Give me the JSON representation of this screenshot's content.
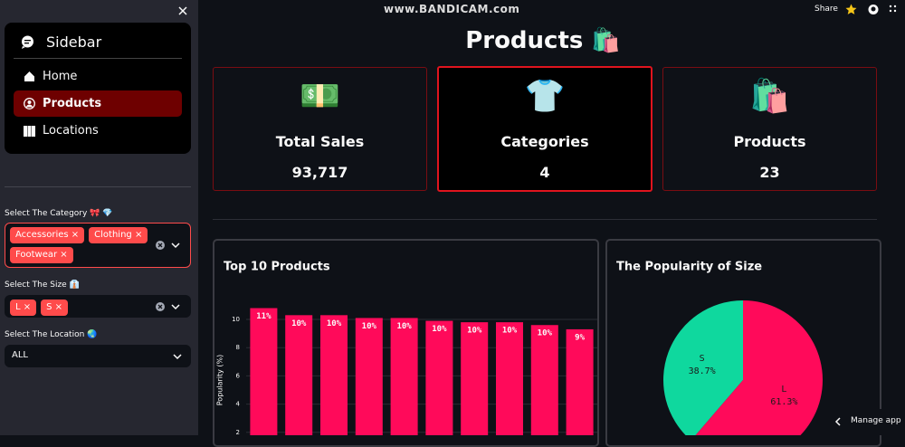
{
  "header": {
    "watermark": "www.BANDICAM.com",
    "share": "Share",
    "manage_app": "Manage app"
  },
  "sidebar": {
    "title": "Sidebar",
    "nav": [
      "Home",
      "Products",
      "Locations"
    ],
    "filters": [
      {
        "label": "Select The Category 🎀 💎",
        "selected": [
          "Accessories",
          "Clothing",
          "Footwear"
        ]
      },
      {
        "label": "Select The Size 👔",
        "selected": [
          "L",
          "S"
        ]
      },
      {
        "label": "Select The Location 🌏",
        "selected": [
          "ALL"
        ]
      }
    ]
  },
  "page_title": "Products 🛍️",
  "metrics": [
    {
      "icon": "💵",
      "label": "Total Sales",
      "value": "93,717"
    },
    {
      "icon": "👕",
      "label": "Categories",
      "value": "4"
    },
    {
      "icon": "🛍️",
      "label": "Products",
      "value": "23"
    }
  ],
  "chart_data": [
    {
      "type": "bar",
      "title": "Top 10 Products",
      "y_label": "Popularity (%)",
      "values": [
        10.8,
        10.3,
        10.3,
        10.1,
        10.1,
        9.9,
        9.8,
        9.8,
        9.6,
        9.3
      ],
      "value_labels": [
        "11%",
        "10%",
        "10%",
        "10%",
        "10%",
        "10%",
        "10%",
        "10%",
        "10%",
        "9%"
      ],
      "color": "#ff0a5a",
      "ylim": [
        0,
        11.5
      ],
      "yticks": [
        2,
        4,
        6,
        8,
        10
      ],
      "grid": true
    },
    {
      "type": "pie",
      "title": "The Popularity of Size",
      "labels": [
        "S",
        "L"
      ],
      "values": [
        38.7,
        61.3
      ],
      "value_labels": [
        "38.7%",
        "61.3%"
      ],
      "colors": [
        "#0fd89e",
        "#ff0a5a"
      ]
    }
  ]
}
